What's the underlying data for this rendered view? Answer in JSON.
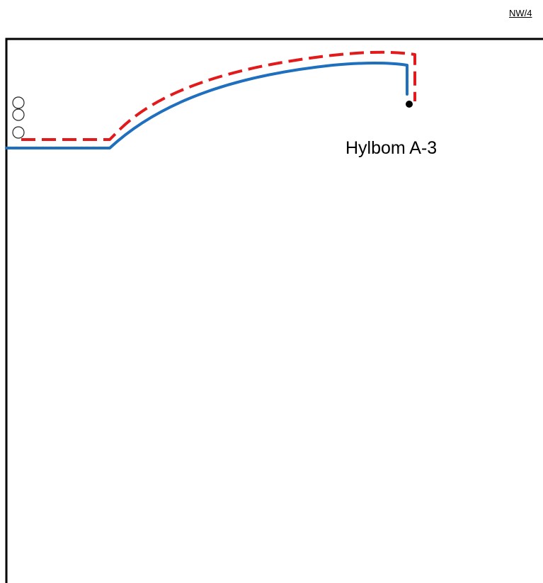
{
  "header": {
    "sheet_ref": "NW/4"
  },
  "diagram": {
    "well_name": "Hylbom A-3",
    "colors": {
      "frame": "#000000",
      "actual_path": "#1f6fbf",
      "planned_path": "#e31a1c",
      "marker_fill": "#000000",
      "circle_stroke": "#222222"
    },
    "line_styles": {
      "actual_path": "solid",
      "planned_path": "dashed"
    },
    "casing_circle_count": 3
  }
}
